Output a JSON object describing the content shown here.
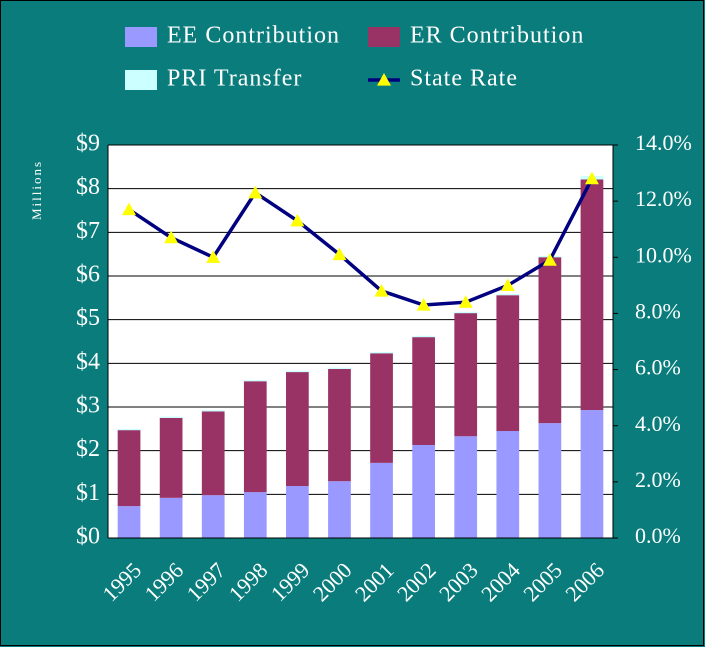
{
  "chart_data": {
    "type": "bar",
    "y_axis_label": "Millions",
    "categories": [
      "1995",
      "1996",
      "1997",
      "1998",
      "1999",
      "2000",
      "2001",
      "2002",
      "2003",
      "2004",
      "2005",
      "2006"
    ],
    "series": [
      {
        "name": "EE Contribution",
        "color": "#9999ff",
        "values": [
          0.73,
          0.92,
          0.98,
          1.05,
          1.19,
          1.3,
          1.72,
          2.13,
          2.33,
          2.45,
          2.63,
          2.93
        ]
      },
      {
        "name": "ER Contribution",
        "color": "#993366",
        "values": [
          1.74,
          1.83,
          1.92,
          2.54,
          2.61,
          2.57,
          2.51,
          2.47,
          2.82,
          3.11,
          3.8,
          5.28
        ]
      },
      {
        "name": "PRI Transfer",
        "color": "#ccffff",
        "values": [
          0.03,
          0.03,
          0.03,
          0.03,
          0.03,
          0.03,
          0.03,
          0.03,
          0.03,
          0.03,
          0.03,
          0.08
        ]
      },
      {
        "name": "State Rate",
        "color": "#000080",
        "marker_color": "#ffff00",
        "type": "line",
        "axis": "y2",
        "values": [
          11.7,
          10.7,
          10.0,
          12.3,
          11.3,
          10.1,
          8.8,
          8.3,
          8.4,
          9.0,
          9.9,
          12.8
        ]
      }
    ],
    "stacked": true,
    "ylim": [
      0,
      9
    ],
    "yticks": [
      {
        "value": 0,
        "label": "$0"
      },
      {
        "value": 1,
        "label": "$1"
      },
      {
        "value": 2,
        "label": "$2"
      },
      {
        "value": 3,
        "label": "$3"
      },
      {
        "value": 4,
        "label": "$4"
      },
      {
        "value": 5,
        "label": "$5"
      },
      {
        "value": 6,
        "label": "$6"
      },
      {
        "value": 7,
        "label": "$7"
      },
      {
        "value": 8,
        "label": "$8"
      },
      {
        "value": 9,
        "label": "$9"
      }
    ],
    "y2lim": [
      0,
      14
    ],
    "y2ticks": [
      {
        "value": 0,
        "label": "0.0%"
      },
      {
        "value": 2,
        "label": "2.0%"
      },
      {
        "value": 4,
        "label": "4.0%"
      },
      {
        "value": 6,
        "label": "6.0%"
      },
      {
        "value": 8,
        "label": "8.0%"
      },
      {
        "value": 10,
        "label": "10.0%"
      },
      {
        "value": 12,
        "label": "12.0%"
      },
      {
        "value": 14,
        "label": "14.0%"
      }
    ],
    "grid": true,
    "legend": "top"
  }
}
